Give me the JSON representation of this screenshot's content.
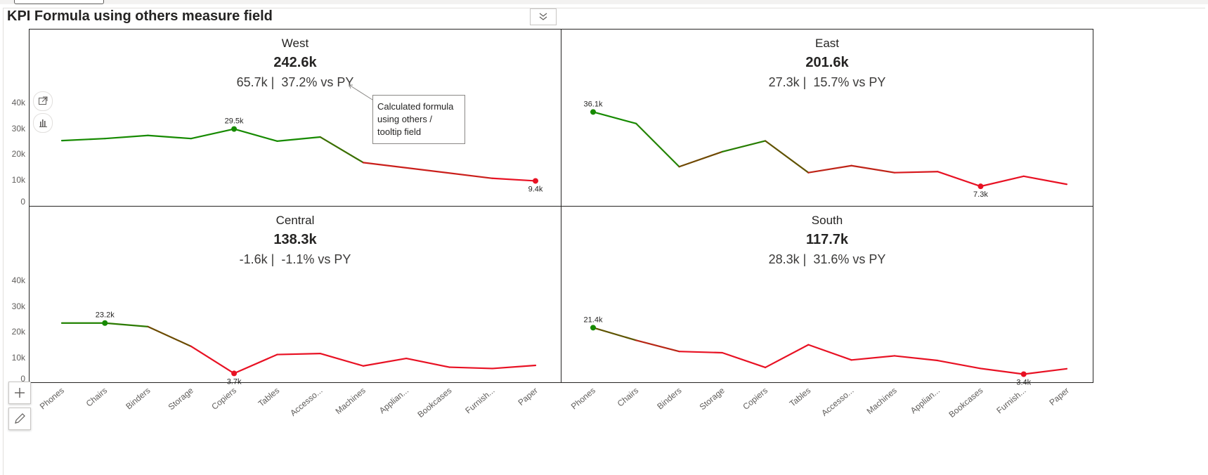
{
  "title": "KPI Formula using others measure field",
  "tooltip_note": {
    "lines": [
      "Calculated formula",
      "using others /",
      "tooltip field"
    ]
  },
  "colors": {
    "good": "#168a00",
    "mid": "#6b4a00",
    "bad": "#e81123",
    "text": "#252423"
  },
  "y_ticks": [
    "40k",
    "30k",
    "20k",
    "10k",
    "0"
  ],
  "chart_data": {
    "type": "line",
    "categories": [
      "Phones",
      "Chairs",
      "Binders",
      "Storage",
      "Copiers",
      "Tables",
      "Accesso...",
      "Machines",
      "Applian...",
      "Bookcases",
      "Furnish...",
      "Paper"
    ],
    "ylim": [
      0,
      40000
    ],
    "panels": [
      {
        "name": "West",
        "total": "242.6k",
        "change": "65.7k",
        "pct": "37.2% vs PY",
        "values": [
          25000,
          25800,
          27000,
          25800,
          29500,
          24800,
          26400,
          16500,
          null,
          null,
          10400,
          9400
        ],
        "max_index": 4,
        "max_label": "29.5k",
        "min_index": 11,
        "min_label": "9.4k"
      },
      {
        "name": "East",
        "total": "201.6k",
        "change": "27.3k",
        "pct": "15.7% vs PY",
        "values": [
          36100,
          31600,
          14900,
          20700,
          24900,
          12600,
          15300,
          12600,
          13000,
          7300,
          11200,
          8100
        ],
        "max_index": 0,
        "max_label": "36.1k",
        "min_index": 9,
        "min_label": "7.3k"
      },
      {
        "name": "Central",
        "total": "138.3k",
        "change": "-1.6k",
        "pct": "-1.1% vs PY",
        "values": [
          23200,
          23200,
          21800,
          14200,
          3700,
          11000,
          11400,
          6600,
          9500,
          6100,
          5600,
          6800
        ],
        "max_index": 1,
        "max_label": "23.2k",
        "min_index": 4,
        "min_label": "3.7k"
      },
      {
        "name": "South",
        "total": "117.7k",
        "change": "28.3k",
        "pct": "31.6% vs PY",
        "values": [
          21400,
          16500,
          12200,
          11700,
          6000,
          14800,
          8900,
          10500,
          8700,
          5600,
          3400,
          5500
        ],
        "max_index": 0,
        "max_label": "21.4k",
        "min_index": 10,
        "min_label": "3.4k"
      }
    ]
  }
}
